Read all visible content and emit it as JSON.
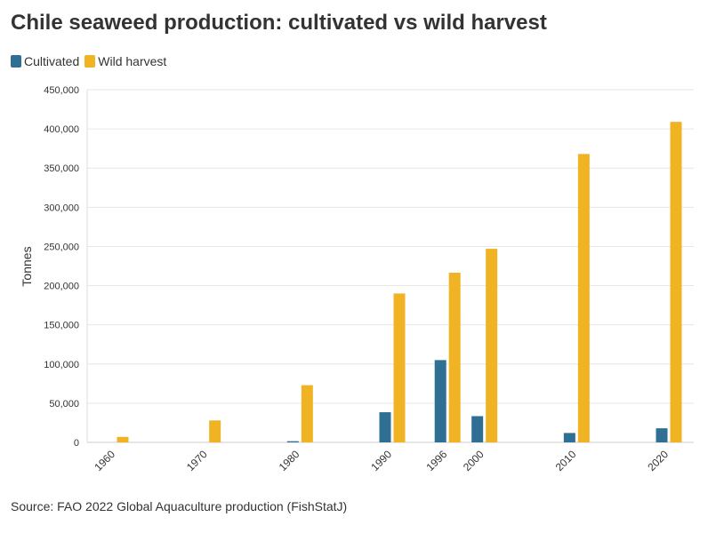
{
  "chart_data": {
    "type": "bar",
    "title": "Chile seaweed production: cultivated vs wild harvest",
    "categories": [
      "1960",
      "1970",
      "1980",
      "1990",
      "1996",
      "2000",
      "2010",
      "2020"
    ],
    "series": [
      {
        "name": "Cultivated",
        "color": "#2f6f94",
        "values": [
          0,
          0,
          1500,
          38500,
          105000,
          33500,
          12000,
          18000
        ]
      },
      {
        "name": "Wild harvest",
        "color": "#f0b323",
        "values": [
          7000,
          28000,
          73000,
          190000,
          216500,
          247000,
          368000,
          409000
        ]
      }
    ],
    "xlabel": "",
    "ylabel": "Tonnes",
    "ylim": [
      0,
      450000
    ],
    "yticks": [
      0,
      50000,
      100000,
      150000,
      200000,
      250000,
      300000,
      350000,
      400000,
      450000
    ],
    "ytick_labels": [
      "0",
      "50,000",
      "100,000",
      "150,000",
      "200,000",
      "250,000",
      "300,000",
      "350,000",
      "400,000",
      "450,000"
    ],
    "grid": true,
    "legend": "top-left",
    "source": "Source: FAO 2022 Global Aquaculture production (FishStatJ)"
  }
}
